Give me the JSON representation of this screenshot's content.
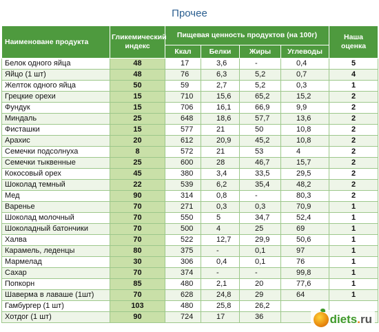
{
  "title": "Прочее",
  "headers": {
    "name": "Наименоване продукта",
    "gi": "Гликемический индекс",
    "nutrition": "Пищевая ценность продуктов (на 100г)",
    "kcal": "Ккал",
    "protein": "Белки",
    "fat": "Жиры",
    "carbs": "Углеводы",
    "rating": "Наша оценка"
  },
  "rows": [
    {
      "name": "Белок одного яйца",
      "gi": "48",
      "kcal": "17",
      "protein": "3,6",
      "fat": "-",
      "carbs": "0,4",
      "rating": "5"
    },
    {
      "name": "Яйцо (1 шт)",
      "gi": "48",
      "kcal": "76",
      "protein": "6,3",
      "fat": "5,2",
      "carbs": "0,7",
      "rating": "4"
    },
    {
      "name": "Желток одного яйца",
      "gi": "50",
      "kcal": "59",
      "protein": "2,7",
      "fat": "5,2",
      "carbs": "0,3",
      "rating": "1"
    },
    {
      "name": "Грецкие орехи",
      "gi": "15",
      "kcal": "710",
      "protein": "15,6",
      "fat": "65,2",
      "carbs": "15,2",
      "rating": "2"
    },
    {
      "name": "Фундук",
      "gi": "15",
      "kcal": "706",
      "protein": "16,1",
      "fat": "66,9",
      "carbs": "9,9",
      "rating": "2"
    },
    {
      "name": "Миндаль",
      "gi": "25",
      "kcal": "648",
      "protein": "18,6",
      "fat": "57,7",
      "carbs": "13,6",
      "rating": "2"
    },
    {
      "name": "Фисташки",
      "gi": "15",
      "kcal": "577",
      "protein": "21",
      "fat": "50",
      "carbs": "10,8",
      "rating": "2"
    },
    {
      "name": "Арахис",
      "gi": "20",
      "kcal": "612",
      "protein": "20,9",
      "fat": "45,2",
      "carbs": "10,8",
      "rating": "2"
    },
    {
      "name": "Семечки подсолнуха",
      "gi": "8",
      "kcal": "572",
      "protein": "21",
      "fat": "53",
      "carbs": "4",
      "rating": "2"
    },
    {
      "name": "Семечки тыквенные",
      "gi": "25",
      "kcal": "600",
      "protein": "28",
      "fat": "46,7",
      "carbs": "15,7",
      "rating": "2"
    },
    {
      "name": "Кокосовый орех",
      "gi": "45",
      "kcal": "380",
      "protein": "3,4",
      "fat": "33,5",
      "carbs": "29,5",
      "rating": "2"
    },
    {
      "name": "Шоколад темный",
      "gi": "22",
      "kcal": "539",
      "protein": "6,2",
      "fat": "35,4",
      "carbs": "48,2",
      "rating": "2"
    },
    {
      "name": "Мед",
      "gi": "90",
      "kcal": "314",
      "protein": "0,8",
      "fat": "-",
      "carbs": "80,3",
      "rating": "2"
    },
    {
      "name": "Варенье",
      "gi": "70",
      "kcal": "271",
      "protein": "0,3",
      "fat": "0,3",
      "carbs": "70,9",
      "rating": "1"
    },
    {
      "name": "Шоколад молочный",
      "gi": "70",
      "kcal": "550",
      "protein": "5",
      "fat": "34,7",
      "carbs": "52,4",
      "rating": "1"
    },
    {
      "name": "Шоколадный батончики",
      "gi": "70",
      "kcal": "500",
      "protein": "4",
      "fat": "25",
      "carbs": "69",
      "rating": "1"
    },
    {
      "name": "Халва",
      "gi": "70",
      "kcal": "522",
      "protein": "12,7",
      "fat": "29,9",
      "carbs": "50,6",
      "rating": "1"
    },
    {
      "name": "Карамель, леденцы",
      "gi": "80",
      "kcal": "375",
      "protein": "-",
      "fat": "0,1",
      "carbs": "97",
      "rating": "1"
    },
    {
      "name": "Мармелад",
      "gi": "30",
      "kcal": "306",
      "protein": "0,4",
      "fat": "0,1",
      "carbs": "76",
      "rating": "1"
    },
    {
      "name": "Сахар",
      "gi": "70",
      "kcal": "374",
      "protein": "-",
      "fat": "-",
      "carbs": "99,8",
      "rating": "1"
    },
    {
      "name": "Попкорн",
      "gi": "85",
      "kcal": "480",
      "protein": "2,1",
      "fat": "20",
      "carbs": "77,6",
      "rating": "1"
    },
    {
      "name": "Шаверма в лаваше (1шт)",
      "gi": "70",
      "kcal": "628",
      "protein": "24,8",
      "fat": "29",
      "carbs": "64",
      "rating": "1"
    },
    {
      "name": "Гамбургер (1 шт)",
      "gi": "103",
      "kcal": "480",
      "protein": "25,8",
      "fat": "26,2",
      "carbs": "",
      "rating": ""
    },
    {
      "name": "Хотдог (1 шт)",
      "gi": "90",
      "kcal": "724",
      "protein": "17",
      "fat": "36",
      "carbs": "",
      "rating": ""
    }
  ],
  "watermark": {
    "brand": "diets",
    "dot": ".",
    "tld": "ru"
  },
  "colors": {
    "header_bg": "#4e9a3e",
    "gi_bg": "#c9e0a8",
    "row_alt": "#eef5e8",
    "title": "#2a5e8f"
  }
}
